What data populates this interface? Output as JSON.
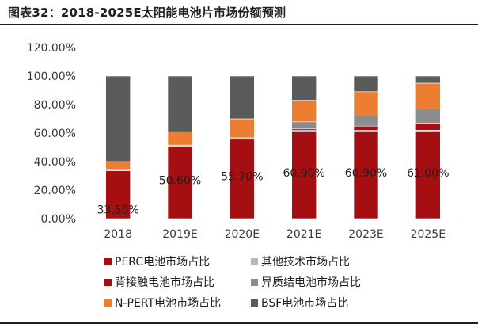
{
  "header": {
    "title": "图表32：2018-2025E太阳能电池片市场份额预测"
  },
  "colors": {
    "perc": "#a50f12",
    "other_tech": "#b8b8b8",
    "back_contact": "#a50f12",
    "hetero": "#8c8c8c",
    "npert": "#ed7d31",
    "bsf": "#5a5a5a"
  },
  "chart_data": {
    "type": "bar",
    "stacked": true,
    "title": "",
    "xlabel": "",
    "ylabel": "",
    "categories": [
      "2018",
      "2019E",
      "2020E",
      "2021E",
      "2023E",
      "2025E"
    ],
    "ylim": [
      0,
      120
    ],
    "ytick_labels": [
      "0.00%",
      "20.00%",
      "40.00%",
      "60.00%",
      "80.00%",
      "100.00%",
      "120.00%"
    ],
    "grid": false,
    "legend_position": "bottom",
    "series": [
      {
        "name": "PERC电池市场占比",
        "key": "perc",
        "values": [
          33.5,
          50.6,
          55.7,
          60.9,
          60.9,
          61.0
        ]
      },
      {
        "name": "其他技术市场占比",
        "key": "other_tech",
        "values": [
          1.0,
          1.0,
          1.0,
          1.0,
          1.0,
          1.0
        ]
      },
      {
        "name": "背接触电池市场占比",
        "key": "back_contact",
        "values": [
          0.0,
          0.0,
          0.0,
          1.0,
          3.0,
          5.0
        ]
      },
      {
        "name": "异质结电池市场占比",
        "key": "hetero",
        "values": [
          0.0,
          0.0,
          0.0,
          5.0,
          7.0,
          10.0
        ]
      },
      {
        "name": "N-PERT电池市场占比",
        "key": "npert",
        "values": [
          5.5,
          9.4,
          13.3,
          15.1,
          17.1,
          18.0
        ]
      },
      {
        "name": "BSF电池市场占比",
        "key": "bsf",
        "values": [
          60.0,
          39.0,
          30.0,
          17.0,
          11.0,
          5.0
        ]
      }
    ],
    "data_labels": [
      "33.50%",
      "50.60%",
      "55.70%",
      "60.90%",
      "60.90%",
      "61.00%"
    ]
  }
}
